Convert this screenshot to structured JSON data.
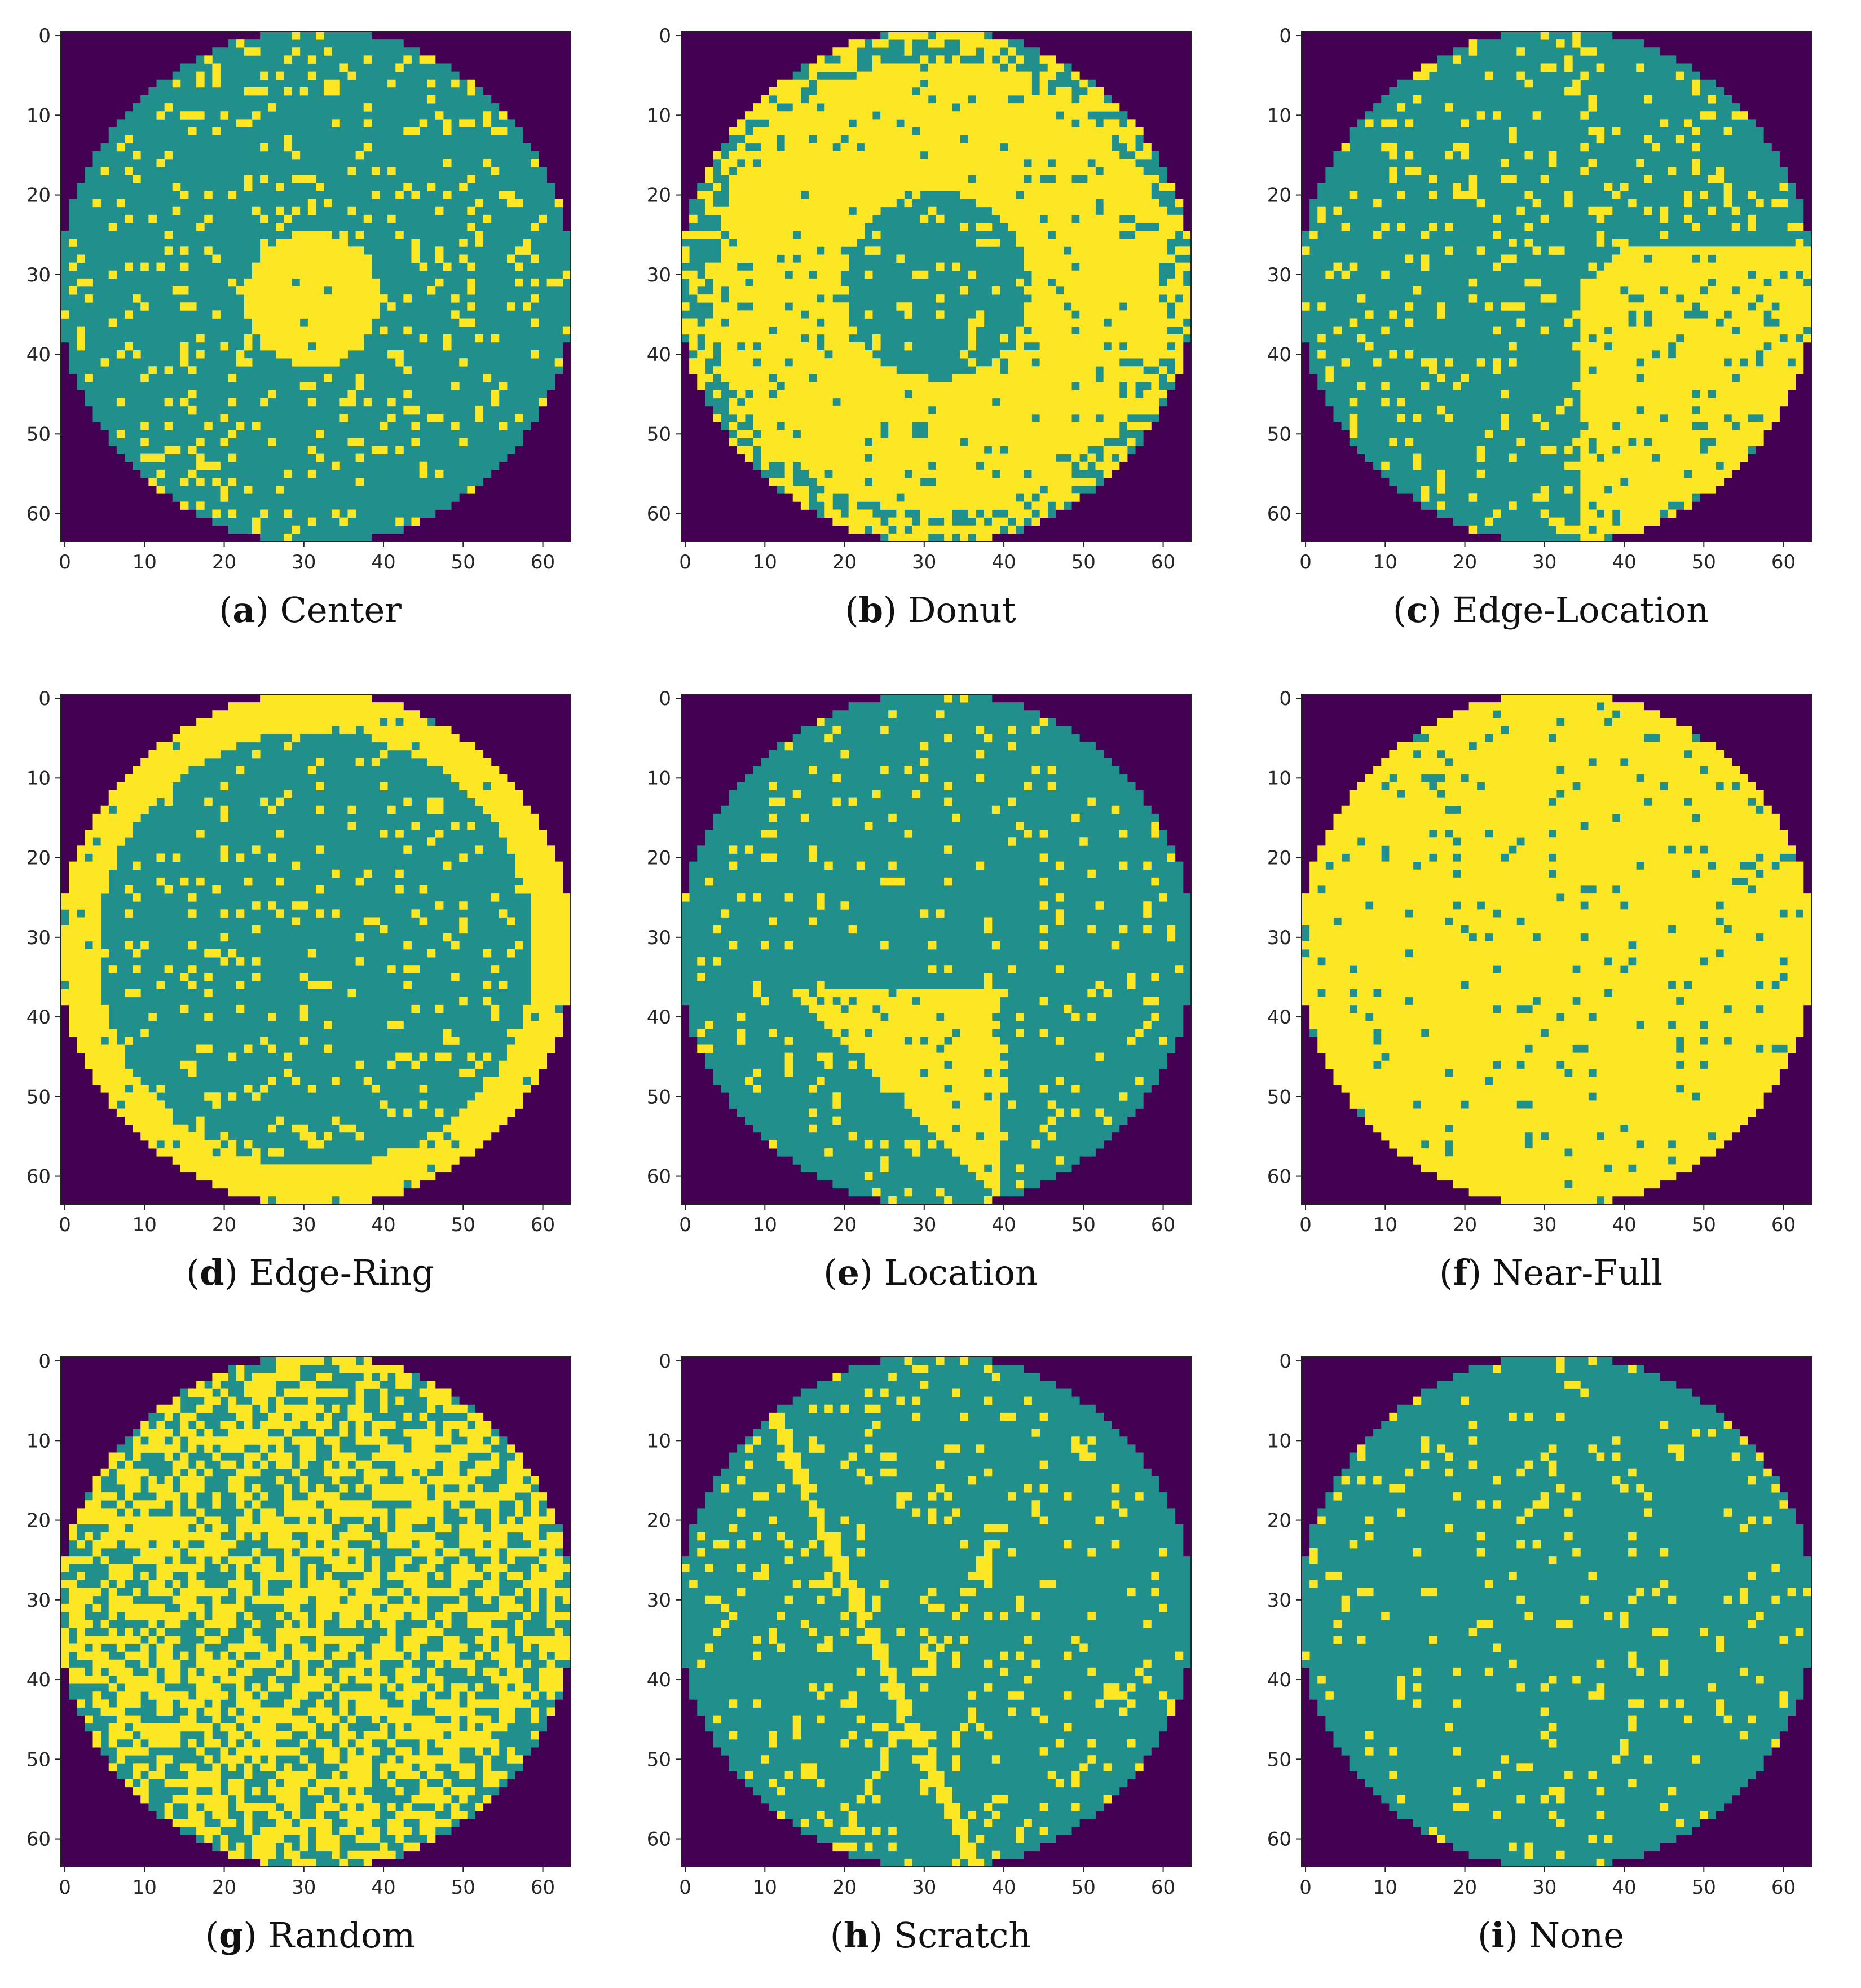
{
  "colors": {
    "background": "#440154",
    "normal_die": "#21908d",
    "defect_die": "#fde725"
  },
  "chart_data": [
    {
      "type": "heatmap",
      "letter": "a",
      "label": "Center",
      "pattern": "center",
      "x_ticks": [
        0,
        10,
        20,
        30,
        40,
        50,
        60
      ],
      "y_ticks": [
        0,
        10,
        20,
        30,
        40,
        50,
        60
      ],
      "xlim": [
        0,
        64
      ],
      "ylim": [
        64,
        0
      ],
      "grid": false
    },
    {
      "type": "heatmap",
      "letter": "b",
      "label": "Donut",
      "pattern": "donut",
      "x_ticks": [
        0,
        10,
        20,
        30,
        40,
        50,
        60
      ],
      "y_ticks": [
        0,
        10,
        20,
        30,
        40,
        50,
        60
      ],
      "xlim": [
        0,
        64
      ],
      "ylim": [
        64,
        0
      ],
      "grid": false
    },
    {
      "type": "heatmap",
      "letter": "c",
      "label": "Edge-Location",
      "pattern": "edge-location",
      "x_ticks": [
        0,
        10,
        20,
        30,
        40,
        50,
        60
      ],
      "y_ticks": [
        0,
        10,
        20,
        30,
        40,
        50,
        60
      ],
      "xlim": [
        0,
        64
      ],
      "ylim": [
        64,
        0
      ],
      "grid": false
    },
    {
      "type": "heatmap",
      "letter": "d",
      "label": "Edge-Ring",
      "pattern": "edge-ring",
      "x_ticks": [
        0,
        10,
        20,
        30,
        40,
        50,
        60
      ],
      "y_ticks": [
        0,
        10,
        20,
        30,
        40,
        50,
        60
      ],
      "xlim": [
        0,
        64
      ],
      "ylim": [
        64,
        0
      ],
      "grid": false
    },
    {
      "type": "heatmap",
      "letter": "e",
      "label": "Location",
      "pattern": "location",
      "x_ticks": [
        0,
        10,
        20,
        30,
        40,
        50,
        60
      ],
      "y_ticks": [
        0,
        10,
        20,
        30,
        40,
        50,
        60
      ],
      "xlim": [
        0,
        64
      ],
      "ylim": [
        64,
        0
      ],
      "grid": false
    },
    {
      "type": "heatmap",
      "letter": "f",
      "label": "Near-Full",
      "pattern": "near-full",
      "x_ticks": [
        0,
        10,
        20,
        30,
        40,
        50,
        60
      ],
      "y_ticks": [
        0,
        10,
        20,
        30,
        40,
        50,
        60
      ],
      "xlim": [
        0,
        64
      ],
      "ylim": [
        64,
        0
      ],
      "grid": false
    },
    {
      "type": "heatmap",
      "letter": "g",
      "label": "Random",
      "pattern": "random",
      "x_ticks": [
        0,
        10,
        20,
        30,
        40,
        50,
        60
      ],
      "y_ticks": [
        0,
        10,
        20,
        30,
        40,
        50,
        60
      ],
      "xlim": [
        0,
        64
      ],
      "ylim": [
        64,
        0
      ],
      "grid": false
    },
    {
      "type": "heatmap",
      "letter": "h",
      "label": "Scratch",
      "pattern": "scratch",
      "x_ticks": [
        0,
        10,
        20,
        30,
        40,
        50,
        60
      ],
      "y_ticks": [
        0,
        10,
        20,
        30,
        40,
        50,
        60
      ],
      "xlim": [
        0,
        64
      ],
      "ylim": [
        64,
        0
      ],
      "grid": false
    },
    {
      "type": "heatmap",
      "letter": "i",
      "label": "None",
      "pattern": "none",
      "x_ticks": [
        0,
        10,
        20,
        30,
        40,
        50,
        60
      ],
      "y_ticks": [
        0,
        10,
        20,
        30,
        40,
        50,
        60
      ],
      "xlim": [
        0,
        64
      ],
      "ylim": [
        64,
        0
      ],
      "grid": false
    }
  ]
}
